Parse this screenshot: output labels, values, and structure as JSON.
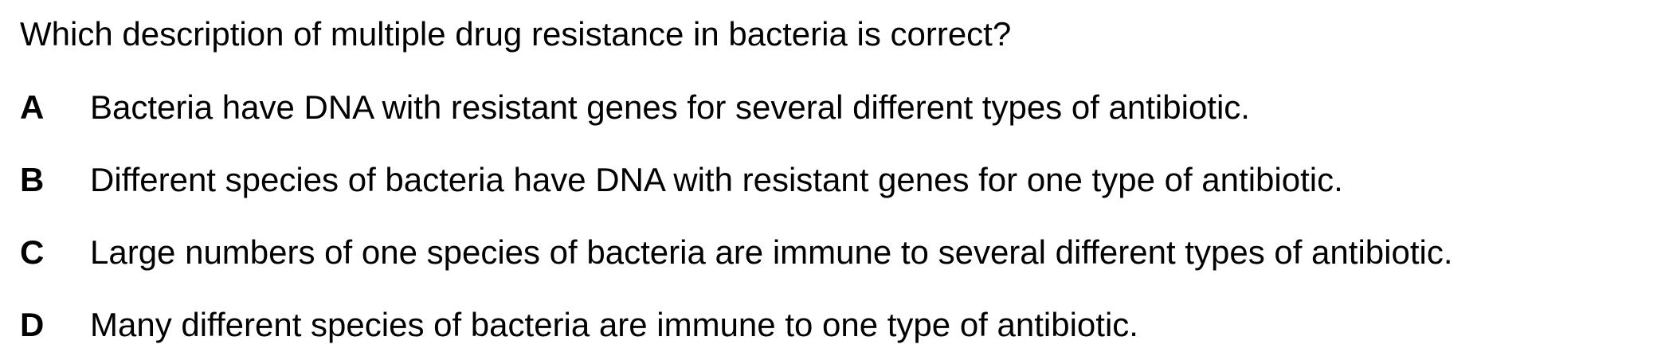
{
  "question": {
    "text": "Which description of multiple drug resistance in bacteria is correct?"
  },
  "options": [
    {
      "letter": "A",
      "text": "Bacteria have DNA with resistant genes for several different types of antibiotic."
    },
    {
      "letter": "B",
      "text": "Different species of bacteria have DNA with resistant genes for one type of antibiotic."
    },
    {
      "letter": "C",
      "text": "Large numbers of one species of bacteria are immune to several different types of antibiotic."
    },
    {
      "letter": "D",
      "text": "Many different species of bacteria are immune to one type of antibiotic."
    }
  ]
}
